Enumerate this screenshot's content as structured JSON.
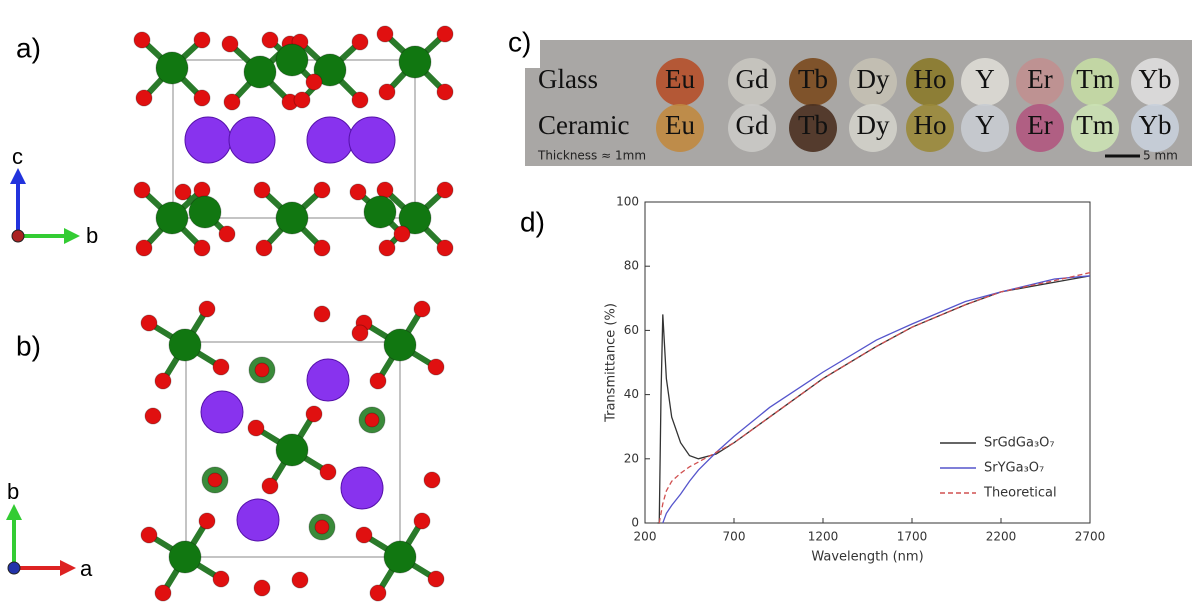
{
  "panels": {
    "a": {
      "label": "a)",
      "axes": [
        "c",
        "b"
      ]
    },
    "b": {
      "label": "b)",
      "axes": [
        "b",
        "a"
      ]
    },
    "c": {
      "label": "c)",
      "rows": [
        {
          "label": "Glass",
          "cells": [
            "Eu",
            "Gd",
            "Tb",
            "Dy",
            "Ho",
            "Y",
            "Er",
            "Tm",
            "Yb"
          ],
          "colors": [
            "#b5502a",
            "#c8c6c0",
            "#7a4a1e",
            "#c4c1b4",
            "#8a7a2a",
            "#dddbd5",
            "#c09090",
            "#c4dca4",
            "#dedede"
          ]
        },
        {
          "label": "Ceramic",
          "cells": [
            "Eu",
            "Gd",
            "Tb",
            "Dy",
            "Ho",
            "Y",
            "Er",
            "Tm",
            "Yb"
          ],
          "colors": [
            "#c08a40",
            "#cacac6",
            "#4a3020",
            "#d2d2ca",
            "#9a8a3a",
            "#c8ccd2",
            "#b05880",
            "#cbe2b4",
            "#c8d0dc"
          ]
        }
      ],
      "note": "Thickness ≈ 1mm",
      "scale": "5 mm"
    },
    "d": {
      "label": "d)"
    }
  },
  "chart_data": {
    "type": "line",
    "xlabel": "Wavelength (nm)",
    "ylabel": "Transmittance (%)",
    "x": [
      200,
      250,
      270,
      280,
      290,
      300,
      310,
      320,
      350,
      400,
      450,
      500,
      600,
      700,
      900,
      1200,
      1500,
      1700,
      2000,
      2200,
      2500,
      2700
    ],
    "series": [
      {
        "name": "SrGdGa₃O₇",
        "color": "#333333",
        "linestyle": "solid",
        "values": [
          null,
          null,
          0,
          0,
          40,
          65,
          55,
          45,
          33,
          25,
          21,
          20,
          21.5,
          25,
          33,
          45,
          55,
          61,
          68,
          72,
          75,
          77
        ]
      },
      {
        "name": "SrYGa₃O₇",
        "color": "#5555cc",
        "linestyle": "solid",
        "values": [
          null,
          null,
          null,
          null,
          null,
          0,
          1.5,
          3,
          5.5,
          9,
          13,
          16.5,
          22,
          27,
          36,
          47,
          57,
          62,
          69,
          72,
          76,
          77
        ]
      },
      {
        "name": "Theoretical",
        "color": "#d05050",
        "linestyle": "dashed",
        "values": [
          null,
          null,
          null,
          0,
          3,
          6,
          8,
          10,
          13,
          15.5,
          17.5,
          19,
          22,
          25,
          33,
          45,
          55,
          61,
          68,
          72,
          75.5,
          78
        ]
      }
    ],
    "xlim": [
      200,
      2700
    ],
    "xticks": [
      200,
      700,
      1200,
      1700,
      2200,
      2700
    ],
    "ylim": [
      0,
      100
    ],
    "yticks": [
      0,
      20,
      40,
      60,
      80,
      100
    ],
    "legend": "lower right"
  }
}
